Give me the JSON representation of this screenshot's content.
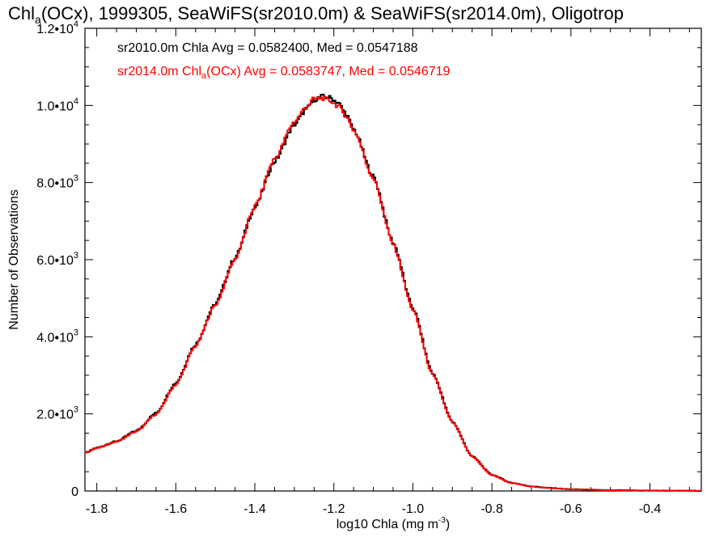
{
  "chart_data": {
    "type": "line",
    "title_parts": {
      "prefix": "Chl",
      "sub": "a",
      "rest": "(OCx), 1999305, SeaWiFS(sr2010.0m) & SeaWiFS(sr2014.0m), Oligotrop"
    },
    "xlabel": {
      "text": "log10 Chla (mg m",
      "sup": "-3",
      "close": ")"
    },
    "ylabel": "Number of Observations",
    "xlim": [
      -1.83,
      -0.27
    ],
    "ylim": [
      0,
      12000
    ],
    "x_ticks": [
      {
        "value": -1.8,
        "label": "-1.8"
      },
      {
        "value": -1.6,
        "label": "-1.6"
      },
      {
        "value": -1.4,
        "label": "-1.4"
      },
      {
        "value": -1.2,
        "label": "-1.2"
      },
      {
        "value": -1.0,
        "label": "-1.0"
      },
      {
        "value": -0.8,
        "label": "-0.8"
      },
      {
        "value": -0.6,
        "label": "-0.6"
      },
      {
        "value": -0.4,
        "label": "-0.4"
      }
    ],
    "y_ticks": [
      {
        "value": 0,
        "mantissa": "0",
        "exp": ""
      },
      {
        "value": 2000,
        "mantissa": "2.0•10",
        "exp": "3"
      },
      {
        "value": 4000,
        "mantissa": "4.0•10",
        "exp": "3"
      },
      {
        "value": 6000,
        "mantissa": "6.0•10",
        "exp": "3"
      },
      {
        "value": 8000,
        "mantissa": "8.0•10",
        "exp": "3"
      },
      {
        "value": 10000,
        "mantissa": "1.0•10",
        "exp": "4"
      },
      {
        "value": 12000,
        "mantissa": "1.2•10",
        "exp": "4"
      }
    ],
    "annotations": [
      {
        "series": 0,
        "text": "sr2010.0m Chla Avg = 0.0582400, Med = 0.0547188"
      },
      {
        "series": 1,
        "pre": "sr2014.0m Chl",
        "sub": "a",
        "post": "(OCx) Avg = 0.0583747, Med = 0.0546719"
      }
    ],
    "series": [
      {
        "color": "#000000",
        "style": "step",
        "x": [
          -1.83,
          -1.8,
          -1.75,
          -1.7,
          -1.65,
          -1.6,
          -1.55,
          -1.5,
          -1.45,
          -1.4,
          -1.35,
          -1.3,
          -1.27,
          -1.25,
          -1.23,
          -1.21,
          -1.19,
          -1.17,
          -1.15,
          -1.1,
          -1.05,
          -1.0,
          -0.95,
          -0.9,
          -0.85,
          -0.8,
          -0.75,
          -0.7,
          -0.65,
          -0.6,
          -0.5,
          -0.4,
          -0.27
        ],
        "y": [
          980,
          1120,
          1290,
          1560,
          2020,
          2800,
          3800,
          4850,
          6050,
          7350,
          8550,
          9500,
          9900,
          10150,
          10230,
          10200,
          10080,
          9800,
          9380,
          8150,
          6450,
          4750,
          3050,
          1800,
          900,
          420,
          210,
          120,
          75,
          45,
          20,
          10,
          5
        ]
      },
      {
        "color": "#ff0000",
        "style": "step",
        "x": [
          -1.83,
          -1.8,
          -1.75,
          -1.7,
          -1.65,
          -1.6,
          -1.55,
          -1.5,
          -1.45,
          -1.4,
          -1.35,
          -1.3,
          -1.27,
          -1.25,
          -1.23,
          -1.21,
          -1.19,
          -1.17,
          -1.15,
          -1.1,
          -1.05,
          -1.0,
          -0.95,
          -0.9,
          -0.85,
          -0.8,
          -0.75,
          -0.7,
          -0.65,
          -0.6,
          -0.5,
          -0.4,
          -0.27
        ],
        "y": [
          1000,
          1110,
          1280,
          1540,
          1990,
          2760,
          3760,
          4820,
          6020,
          7380,
          8620,
          9580,
          9960,
          10170,
          10190,
          10120,
          9990,
          9740,
          9360,
          8120,
          6400,
          4700,
          3010,
          1780,
          890,
          410,
          205,
          115,
          72,
          42,
          19,
          9,
          5
        ]
      }
    ]
  }
}
